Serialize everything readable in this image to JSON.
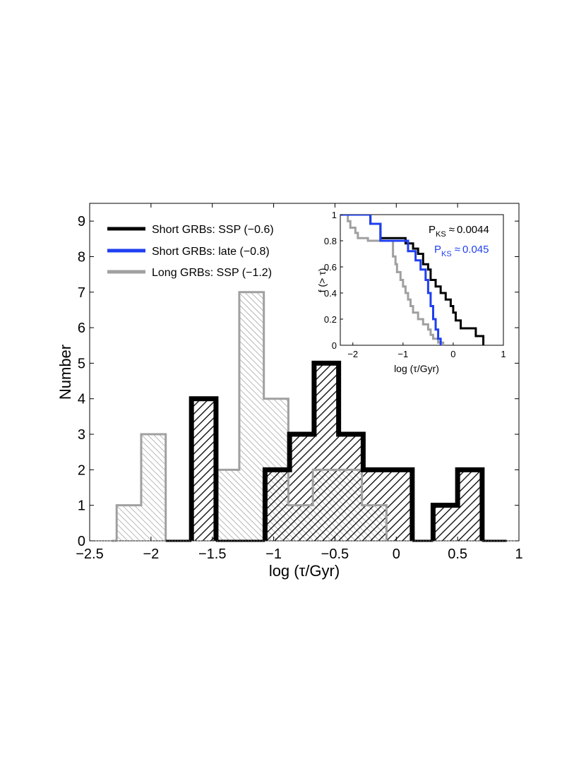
{
  "chart_data": [
    {
      "type": "bar",
      "subtype": "histogram",
      "xlabel": "log (τ/Gyr)",
      "ylabel": "Number",
      "xlim": [
        -2.5,
        1
      ],
      "ylim": [
        0,
        9.5
      ],
      "xticks": [
        -2.5,
        -2,
        -1.5,
        -1,
        -0.5,
        0,
        0.5,
        1
      ],
      "xtick_labels": [
        "−2.5",
        "−2",
        "−1.5",
        "−1",
        "−0.5",
        "0",
        "0.5",
        "1"
      ],
      "yticks": [
        0,
        1,
        2,
        3,
        4,
        5,
        6,
        7,
        8,
        9
      ],
      "legend_position": "top-left",
      "series": [
        {
          "name": "Long GRBs: SSP (−1.2)",
          "color": "#a0a0a0",
          "hatch": "light",
          "bins": [
            {
              "x0": -2.28,
              "x1": -2.08,
              "count": 1
            },
            {
              "x0": -2.08,
              "x1": -1.88,
              "count": 3
            },
            {
              "x0": -1.48,
              "x1": -1.28,
              "count": 2
            },
            {
              "x0": -1.28,
              "x1": -1.08,
              "count": 7
            },
            {
              "x0": -1.08,
              "x1": -0.88,
              "count": 4
            },
            {
              "x0": -0.88,
              "x1": -0.68,
              "count": 1
            },
            {
              "x0": -0.68,
              "x1": -0.28,
              "count": 2
            },
            {
              "x0": -0.28,
              "x1": -0.08,
              "count": 1
            }
          ]
        },
        {
          "name": "Short GRBs: SSP (−0.6)",
          "color": "#000000",
          "hatch": "heavy",
          "bins": [
            {
              "x0": -1.67,
              "x1": -1.47,
              "count": 4
            },
            {
              "x0": -1.07,
              "x1": -0.87,
              "count": 2
            },
            {
              "x0": -0.87,
              "x1": -0.67,
              "count": 3
            },
            {
              "x0": -0.67,
              "x1": -0.47,
              "count": 5
            },
            {
              "x0": -0.47,
              "x1": -0.27,
              "count": 3
            },
            {
              "x0": -0.27,
              "x1": 0.13,
              "count": 2
            },
            {
              "x0": 0.3,
              "x1": 0.5,
              "count": 1
            },
            {
              "x0": 0.5,
              "x1": 0.7,
              "count": 2
            }
          ]
        },
        {
          "name": "Short GRBs: late (−0.8)",
          "color": "#1f3ff0",
          "hatch": "none",
          "bins": []
        }
      ]
    },
    {
      "type": "line",
      "subtype": "cumulative-step",
      "xlabel": "log (τ/Gyr)",
      "ylabel": "f (> τ)",
      "xlim": [
        -2.25,
        1
      ],
      "ylim": [
        0,
        1
      ],
      "xticks": [
        -2,
        -1,
        0,
        1
      ],
      "xtick_labels": [
        "−2",
        "−1",
        "0",
        "1"
      ],
      "yticks": [
        0,
        0.2,
        0.4,
        0.6,
        0.8,
        1
      ],
      "ytick_labels": [
        "0",
        "0.2",
        "0.4",
        "0.6",
        "0.8",
        "1"
      ],
      "annotations": [
        {
          "label": "P",
          "sub": "KS",
          "rel": "≈",
          "value": "0.0044",
          "color": "#000000"
        },
        {
          "label": "P",
          "sub": "KS",
          "rel": "≈",
          "value": "0.045",
          "color": "#1f3ff0"
        }
      ],
      "series": [
        {
          "name": "Long GRBs: SSP",
          "color": "#a0a0a0",
          "x": [
            -2.25,
            -2.1,
            -2.05,
            -1.95,
            -1.9,
            -1.7,
            -1.4,
            -1.25,
            -1.2,
            -1.15,
            -1.12,
            -1.05,
            -1.0,
            -0.95,
            -0.9,
            -0.85,
            -0.8,
            -0.7,
            -0.6,
            -0.5,
            -0.45,
            -0.4,
            -0.3,
            -0.2
          ],
          "y": [
            1.0,
            0.95,
            0.9,
            0.86,
            0.82,
            0.8,
            0.8,
            0.8,
            0.68,
            0.62,
            0.56,
            0.5,
            0.45,
            0.4,
            0.35,
            0.3,
            0.25,
            0.2,
            0.16,
            0.12,
            0.08,
            0.05,
            0.02,
            0.0
          ]
        },
        {
          "name": "Short GRBs: SSP",
          "color": "#000000",
          "x": [
            -2.25,
            -1.65,
            -1.45,
            -1.0,
            -0.95,
            -0.8,
            -0.7,
            -0.6,
            -0.5,
            -0.45,
            -0.35,
            -0.25,
            -0.15,
            -0.05,
            0.0,
            0.05,
            0.15,
            0.45,
            0.6
          ],
          "y": [
            1.0,
            0.93,
            0.82,
            0.82,
            0.78,
            0.74,
            0.7,
            0.62,
            0.58,
            0.5,
            0.45,
            0.4,
            0.35,
            0.3,
            0.25,
            0.19,
            0.13,
            0.07,
            0.0
          ]
        },
        {
          "name": "Short GRBs: late",
          "color": "#1f3ff0",
          "x": [
            -2.25,
            -1.65,
            -1.45,
            -1.0,
            -0.9,
            -0.75,
            -0.65,
            -0.55,
            -0.5,
            -0.45,
            -0.4,
            -0.35,
            -0.3,
            -0.25
          ],
          "y": [
            1.0,
            0.93,
            0.8,
            0.8,
            0.72,
            0.65,
            0.58,
            0.5,
            0.4,
            0.3,
            0.2,
            0.12,
            0.05,
            0.0
          ]
        }
      ]
    }
  ]
}
